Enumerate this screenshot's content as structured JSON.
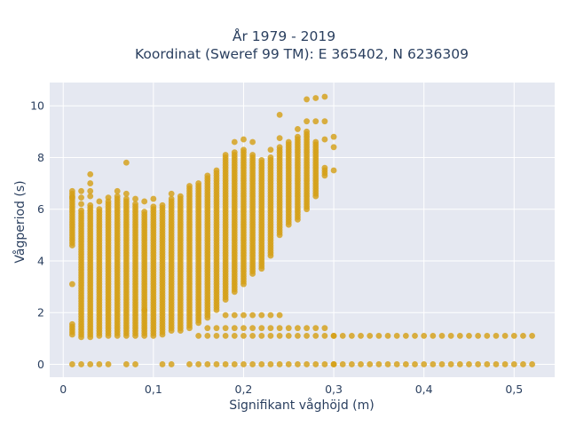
{
  "chart_data": {
    "type": "scatter",
    "title_lines": [
      "År 1979 - 2019",
      "Koordinat (Sweref 99 TM): E 365402, N 6236309"
    ],
    "xlabel": "Signifikant våghöjd (m)",
    "ylabel": "Vågperiod (s)",
    "xlim": [
      -0.015,
      0.545
    ],
    "ylim": [
      -0.5,
      10.9
    ],
    "x_ticks": [
      {
        "value": 0,
        "label": "0"
      },
      {
        "value": 0.1,
        "label": "0,1"
      },
      {
        "value": 0.2,
        "label": "0,2"
      },
      {
        "value": 0.3,
        "label": "0,3"
      },
      {
        "value": 0.4,
        "label": "0,4"
      },
      {
        "value": 0.5,
        "label": "0,5"
      }
    ],
    "y_ticks": [
      {
        "value": 0,
        "label": "0"
      },
      {
        "value": 2,
        "label": "2"
      },
      {
        "value": 4,
        "label": "4"
      },
      {
        "value": 6,
        "label": "6"
      },
      {
        "value": 8,
        "label": "8"
      },
      {
        "value": 10,
        "label": "10"
      }
    ],
    "grid": true,
    "legend": "none",
    "colors": {
      "marker": "#d4a017",
      "plot_bg": "#e5e8f1",
      "grid": "#ffffff",
      "text": "#2a3f5f"
    },
    "columns": [
      {
        "x": 0.01,
        "ranges": [
          [
            4.6,
            6.6
          ],
          [
            1.15,
            1.6
          ]
        ],
        "extra": [
          6.7,
          6.45,
          3.1
        ],
        "zero": true
      },
      {
        "x": 0.02,
        "ranges": [
          [
            1.05,
            6.0
          ]
        ],
        "extra": [
          6.7,
          6.45,
          6.2
        ],
        "zero": true
      },
      {
        "x": 0.03,
        "ranges": [
          [
            1.05,
            6.2
          ]
        ],
        "extra": [
          7.35,
          7.0,
          6.7,
          6.5
        ],
        "zero": true
      },
      {
        "x": 0.04,
        "ranges": [
          [
            1.1,
            6.0
          ]
        ],
        "extra": [
          6.3
        ],
        "zero": true
      },
      {
        "x": 0.05,
        "ranges": [
          [
            1.1,
            6.3
          ]
        ],
        "extra": [
          6.45
        ],
        "zero": true
      },
      {
        "x": 0.06,
        "ranges": [
          [
            1.1,
            6.5
          ]
        ],
        "extra": [
          6.7
        ],
        "zero": false
      },
      {
        "x": 0.07,
        "ranges": [
          [
            1.1,
            6.4
          ]
        ],
        "extra": [
          7.8,
          6.6
        ],
        "zero": true
      },
      {
        "x": 0.08,
        "ranges": [
          [
            1.1,
            6.2
          ]
        ],
        "extra": [
          6.4
        ],
        "zero": true
      },
      {
        "x": 0.09,
        "ranges": [
          [
            1.1,
            5.9
          ]
        ],
        "extra": [
          2.1,
          6.3
        ],
        "zero": false
      },
      {
        "x": 0.1,
        "ranges": [
          [
            1.1,
            6.1
          ]
        ],
        "extra": [
          6.4
        ],
        "zero": false
      },
      {
        "x": 0.11,
        "ranges": [
          [
            1.15,
            6.2
          ]
        ],
        "extra": [],
        "zero": true
      },
      {
        "x": 0.12,
        "ranges": [
          [
            1.3,
            6.4
          ]
        ],
        "extra": [
          6.6
        ],
        "zero": true
      },
      {
        "x": 0.13,
        "ranges": [
          [
            1.3,
            6.5
          ]
        ],
        "extra": [],
        "zero": false
      },
      {
        "x": 0.14,
        "ranges": [
          [
            1.4,
            6.9
          ]
        ],
        "extra": [],
        "zero": true
      },
      {
        "x": 0.15,
        "ranges": [
          [
            1.6,
            7.0
          ]
        ],
        "extra": [
          1.1
        ],
        "zero": true
      },
      {
        "x": 0.16,
        "ranges": [
          [
            1.8,
            7.3
          ]
        ],
        "extra": [
          1.1,
          1.4
        ],
        "zero": true
      },
      {
        "x": 0.17,
        "ranges": [
          [
            2.1,
            7.5
          ]
        ],
        "extra": [
          1.1,
          1.4
        ],
        "zero": true
      },
      {
        "x": 0.18,
        "ranges": [
          [
            2.5,
            8.1
          ]
        ],
        "extra": [
          1.1,
          1.4,
          1.9
        ],
        "zero": true
      },
      {
        "x": 0.19,
        "ranges": [
          [
            2.8,
            8.2
          ]
        ],
        "extra": [
          1.1,
          1.4,
          1.9,
          8.6
        ],
        "zero": true
      },
      {
        "x": 0.2,
        "ranges": [
          [
            3.1,
            8.3
          ]
        ],
        "extra": [
          1.1,
          1.4,
          1.9,
          8.7
        ],
        "zero": true
      },
      {
        "x": 0.21,
        "ranges": [
          [
            3.5,
            8.1
          ]
        ],
        "extra": [
          1.1,
          1.4,
          1.9,
          8.6
        ],
        "zero": true
      },
      {
        "x": 0.22,
        "ranges": [
          [
            3.7,
            7.9
          ]
        ],
        "extra": [
          1.1,
          1.4,
          1.9
        ],
        "zero": true
      },
      {
        "x": 0.23,
        "ranges": [
          [
            4.2,
            8.0
          ]
        ],
        "extra": [
          1.1,
          1.4,
          1.9,
          8.3
        ],
        "zero": true
      },
      {
        "x": 0.24,
        "ranges": [
          [
            5.0,
            8.4
          ]
        ],
        "extra": [
          1.1,
          1.4,
          1.9,
          8.75,
          9.65
        ],
        "zero": true
      },
      {
        "x": 0.25,
        "ranges": [
          [
            5.4,
            8.6
          ]
        ],
        "extra": [
          1.1,
          1.4
        ],
        "zero": true
      },
      {
        "x": 0.26,
        "ranges": [
          [
            5.6,
            8.8
          ]
        ],
        "extra": [
          1.1,
          1.4,
          9.1
        ],
        "zero": true
      },
      {
        "x": 0.27,
        "ranges": [
          [
            6.0,
            9.0
          ]
        ],
        "extra": [
          1.1,
          1.4,
          9.4,
          10.25
        ],
        "zero": true
      },
      {
        "x": 0.28,
        "ranges": [
          [
            6.5,
            8.6
          ]
        ],
        "extra": [
          1.1,
          1.4,
          9.4,
          10.3
        ],
        "zero": true
      },
      {
        "x": 0.29,
        "ranges": [
          [
            7.3,
            7.6
          ]
        ],
        "extra": [
          1.1,
          1.4,
          8.7,
          9.4,
          10.35
        ],
        "zero": true
      },
      {
        "x": 0.3,
        "ranges": [],
        "extra": [
          1.1,
          7.5,
          8.4,
          8.8
        ],
        "zero": true
      }
    ],
    "tail_rows": [
      {
        "y": 1.1,
        "from": 0.3,
        "to": 0.52,
        "step": 0.01
      },
      {
        "y": 0.0,
        "from": 0.3,
        "to": 0.52,
        "step": 0.01
      }
    ]
  }
}
